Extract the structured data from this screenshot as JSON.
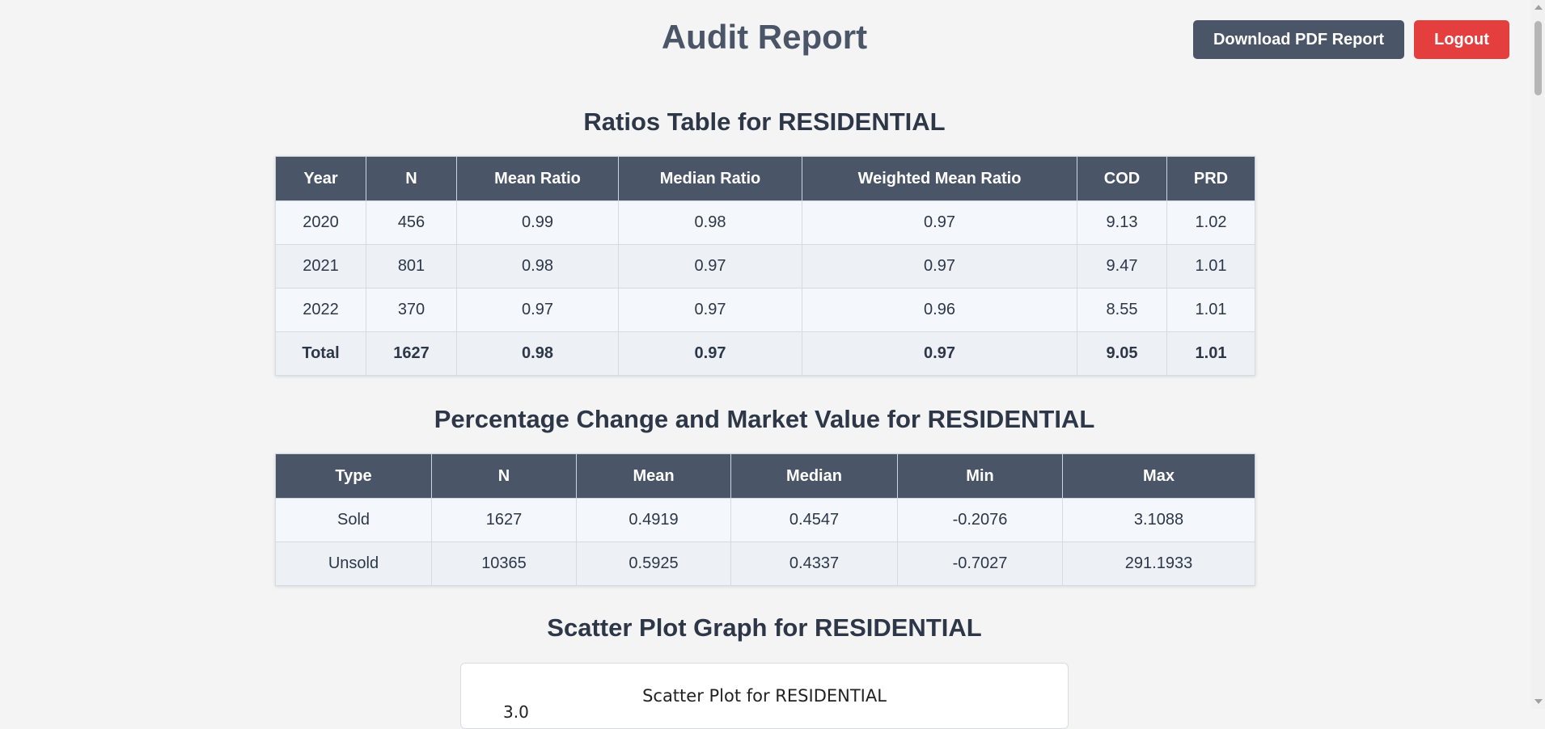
{
  "header": {
    "title": "Audit Report",
    "download_label": "Download PDF Report",
    "logout_label": "Logout"
  },
  "ratios": {
    "title": "Ratios Table for RESIDENTIAL",
    "columns": [
      "Year",
      "N",
      "Mean Ratio",
      "Median Ratio",
      "Weighted Mean Ratio",
      "COD",
      "PRD"
    ],
    "rows": [
      [
        "2020",
        "456",
        "0.99",
        "0.98",
        "0.97",
        "9.13",
        "1.02"
      ],
      [
        "2021",
        "801",
        "0.98",
        "0.97",
        "0.97",
        "9.47",
        "1.01"
      ],
      [
        "2022",
        "370",
        "0.97",
        "0.97",
        "0.96",
        "8.55",
        "1.01"
      ],
      [
        "Total",
        "1627",
        "0.98",
        "0.97",
        "0.97",
        "9.05",
        "1.01"
      ]
    ]
  },
  "pct_change": {
    "title": "Percentage Change and Market Value for RESIDENTIAL",
    "columns": [
      "Type",
      "N",
      "Mean",
      "Median",
      "Min",
      "Max"
    ],
    "rows": [
      [
        "Sold",
        "1627",
        "0.4919",
        "0.4547",
        "-0.2076",
        "3.1088"
      ],
      [
        "Unsold",
        "10365",
        "0.5925",
        "0.4337",
        "-0.7027",
        "291.1933"
      ]
    ]
  },
  "scatter": {
    "section_title": "Scatter Plot Graph for RESIDENTIAL",
    "chart_title": "Scatter Plot for RESIDENTIAL",
    "visible_tick": "3.0"
  },
  "colors": {
    "header_bg": "#4a5568",
    "logout_bg": "#e53e3e",
    "page_bg": "#f4f4f4"
  }
}
